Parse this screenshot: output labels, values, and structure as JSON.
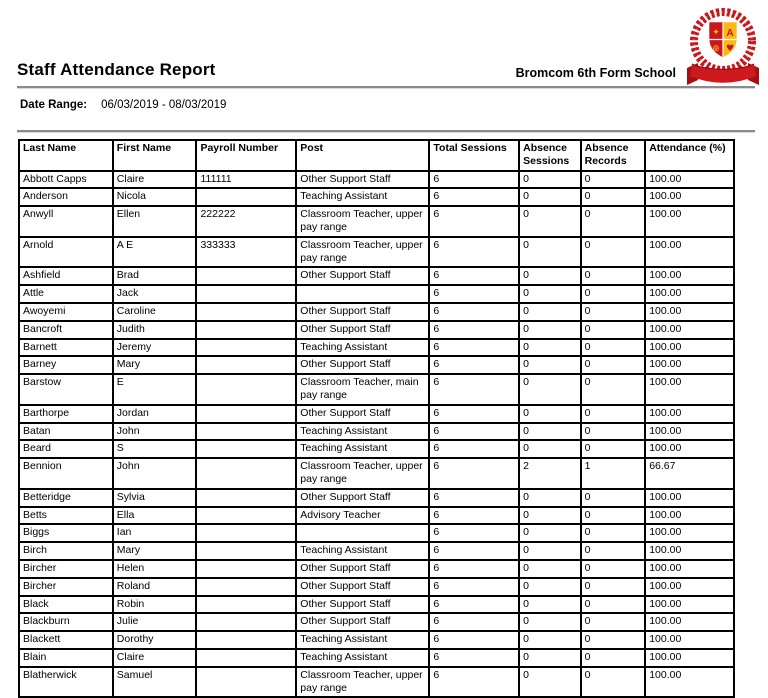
{
  "header": {
    "title": "Staff Attendance Report",
    "school_name": "Bromcom 6th Form School",
    "logo": {
      "icon": "school-crest-logo",
      "wreath_color": "#c8161d",
      "shield_red": "#c8161d",
      "shield_gold": "#fdb913",
      "ribbon_color": "#ce1a1c"
    }
  },
  "date_range": {
    "label": "Date Range:",
    "value": "06/03/2019 - 08/03/2019"
  },
  "table": {
    "columns": [
      "Last Name",
      "First Name",
      "Payroll Number",
      "Post",
      "Total Sessions",
      "Absence Sessions",
      "Absence Records",
      "Attendance (%)"
    ],
    "rows": [
      [
        "Abbott Capps",
        "Claire",
        "111111",
        "Other Support Staff",
        "6",
        "0",
        "0",
        "100.00"
      ],
      [
        "Anderson",
        "Nicola",
        "",
        "Teaching Assistant",
        "6",
        "0",
        "0",
        "100.00"
      ],
      [
        "Anwyll",
        "Ellen",
        "222222",
        "Classroom Teacher, upper pay range",
        "6",
        "0",
        "0",
        "100.00"
      ],
      [
        "Arnold",
        "A E",
        "333333",
        "Classroom Teacher, upper pay range",
        "6",
        "0",
        "0",
        "100.00"
      ],
      [
        "Ashfield",
        "Brad",
        "",
        "Other Support Staff",
        "6",
        "0",
        "0",
        "100.00"
      ],
      [
        "Attle",
        "Jack",
        "",
        "",
        "6",
        "0",
        "0",
        "100.00"
      ],
      [
        "Awoyemi",
        "Caroline",
        "",
        "Other Support Staff",
        "6",
        "0",
        "0",
        "100.00"
      ],
      [
        "Bancroft",
        "Judith",
        "",
        "Other Support Staff",
        "6",
        "0",
        "0",
        "100.00"
      ],
      [
        "Barnett",
        "Jeremy",
        "",
        "Teaching Assistant",
        "6",
        "0",
        "0",
        "100.00"
      ],
      [
        "Barney",
        "Mary",
        "",
        "Other Support Staff",
        "6",
        "0",
        "0",
        "100.00"
      ],
      [
        "Barstow",
        "E",
        "",
        "Classroom Teacher, main pay range",
        "6",
        "0",
        "0",
        "100.00"
      ],
      [
        "Barthorpe",
        "Jordan",
        "",
        "Other Support Staff",
        "6",
        "0",
        "0",
        "100.00"
      ],
      [
        "Batan",
        "John",
        "",
        "Teaching Assistant",
        "6",
        "0",
        "0",
        "100.00"
      ],
      [
        "Beard",
        "S",
        "",
        "Teaching Assistant",
        "6",
        "0",
        "0",
        "100.00"
      ],
      [
        "Bennion",
        "John",
        "",
        "Classroom Teacher, upper pay range",
        "6",
        "2",
        "1",
        "66.67"
      ],
      [
        "Betteridge",
        "Sylvia",
        "",
        "Other Support Staff",
        "6",
        "0",
        "0",
        "100.00"
      ],
      [
        "Betts",
        "Ella",
        "",
        "Advisory Teacher",
        "6",
        "0",
        "0",
        "100.00"
      ],
      [
        "Biggs",
        "Ian",
        "",
        "",
        "6",
        "0",
        "0",
        "100.00"
      ],
      [
        "Birch",
        "Mary",
        "",
        "Teaching Assistant",
        "6",
        "0",
        "0",
        "100.00"
      ],
      [
        "Bircher",
        "Helen",
        "",
        "Other Support Staff",
        "6",
        "0",
        "0",
        "100.00"
      ],
      [
        "Bircher",
        "Roland",
        "",
        "Other Support Staff",
        "6",
        "0",
        "0",
        "100.00"
      ],
      [
        "Black",
        "Robin",
        "",
        "Other Support Staff",
        "6",
        "0",
        "0",
        "100.00"
      ],
      [
        "Blackburn",
        "Julie",
        "",
        "Other Support Staff",
        "6",
        "0",
        "0",
        "100.00"
      ],
      [
        "Blackett",
        "Dorothy",
        "",
        "Teaching Assistant",
        "6",
        "0",
        "0",
        "100.00"
      ],
      [
        "Blain",
        "Claire",
        "",
        "Teaching Assistant",
        "6",
        "0",
        "0",
        "100.00"
      ],
      [
        "Blatherwick",
        "Samuel",
        "",
        "Classroom Teacher, upper pay range",
        "6",
        "0",
        "0",
        "100.00"
      ]
    ]
  }
}
